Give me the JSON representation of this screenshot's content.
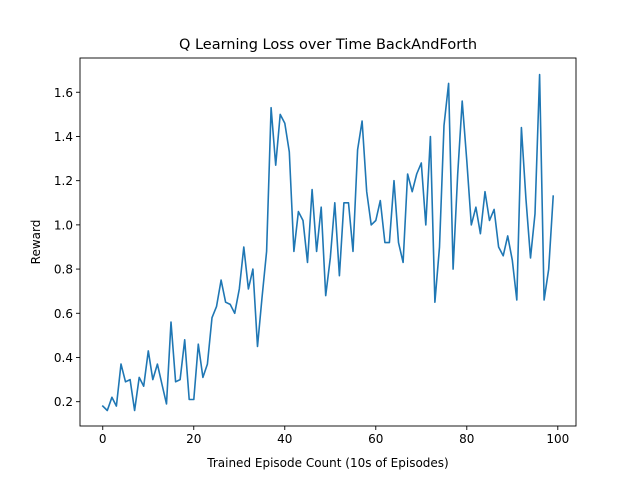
{
  "chart_data": {
    "type": "line",
    "title": "Q Learning Loss over Time BackAndForth",
    "xlabel": "Trained Episode Count (10s of Episodes)",
    "ylabel": "Reward",
    "xlim": [
      -5,
      104
    ],
    "ylim": [
      0.09,
      1.755
    ],
    "xticks": [
      0,
      20,
      40,
      60,
      80,
      100
    ],
    "xtick_labels": [
      "0",
      "20",
      "40",
      "60",
      "80",
      "100"
    ],
    "yticks": [
      0.2,
      0.4,
      0.6,
      0.8,
      1.0,
      1.2,
      1.4,
      1.6
    ],
    "ytick_labels": [
      "0.2",
      "0.4",
      "0.6",
      "0.8",
      "1.0",
      "1.2",
      "1.4",
      "1.6"
    ],
    "grid": false,
    "line_color": "#1f77b4",
    "series": [
      {
        "x": [
          0,
          1,
          2,
          3,
          4,
          5,
          6,
          7,
          8,
          9,
          10,
          11,
          12,
          13,
          14,
          15,
          16,
          17,
          18,
          19,
          20,
          21,
          22,
          23,
          24,
          25,
          26,
          27,
          28,
          29,
          30,
          31,
          32,
          33,
          34,
          35,
          36,
          37,
          38,
          39,
          40,
          41,
          42,
          43,
          44,
          45,
          46,
          47,
          48,
          49,
          50,
          51,
          52,
          53,
          54,
          55,
          56,
          57,
          58,
          59,
          60,
          61,
          62,
          63,
          64,
          65,
          66,
          67,
          68,
          69,
          70,
          71,
          72,
          73,
          74,
          75,
          76,
          77,
          78,
          79,
          80,
          81,
          82,
          83,
          84,
          85,
          86,
          87,
          88,
          89,
          90,
          91,
          92,
          93,
          94,
          95,
          96,
          97,
          98,
          99
        ],
        "values": [
          0.18,
          0.16,
          0.22,
          0.18,
          0.37,
          0.29,
          0.3,
          0.16,
          0.31,
          0.27,
          0.43,
          0.3,
          0.37,
          0.28,
          0.19,
          0.56,
          0.29,
          0.3,
          0.48,
          0.21,
          0.21,
          0.46,
          0.31,
          0.37,
          0.58,
          0.63,
          0.75,
          0.65,
          0.64,
          0.6,
          0.71,
          0.9,
          0.71,
          0.8,
          0.45,
          0.67,
          0.88,
          1.53,
          1.27,
          1.5,
          1.46,
          1.33,
          0.88,
          1.06,
          1.02,
          0.83,
          1.16,
          0.88,
          1.08,
          0.68,
          0.85,
          1.1,
          0.77,
          1.1,
          1.1,
          0.88,
          1.34,
          1.47,
          1.15,
          1.0,
          1.02,
          1.11,
          0.92,
          0.92,
          1.2,
          0.92,
          0.83,
          1.23,
          1.15,
          1.23,
          1.28,
          1.0,
          1.4,
          0.65,
          0.9,
          1.45,
          1.64,
          0.8,
          1.23,
          1.56,
          1.29,
          1.0,
          1.08,
          0.96,
          1.15,
          1.02,
          1.07,
          0.9,
          0.86,
          0.95,
          0.84,
          0.66,
          1.44,
          1.12,
          0.85,
          1.05,
          1.68,
          0.66,
          0.8,
          1.13
        ]
      }
    ]
  }
}
